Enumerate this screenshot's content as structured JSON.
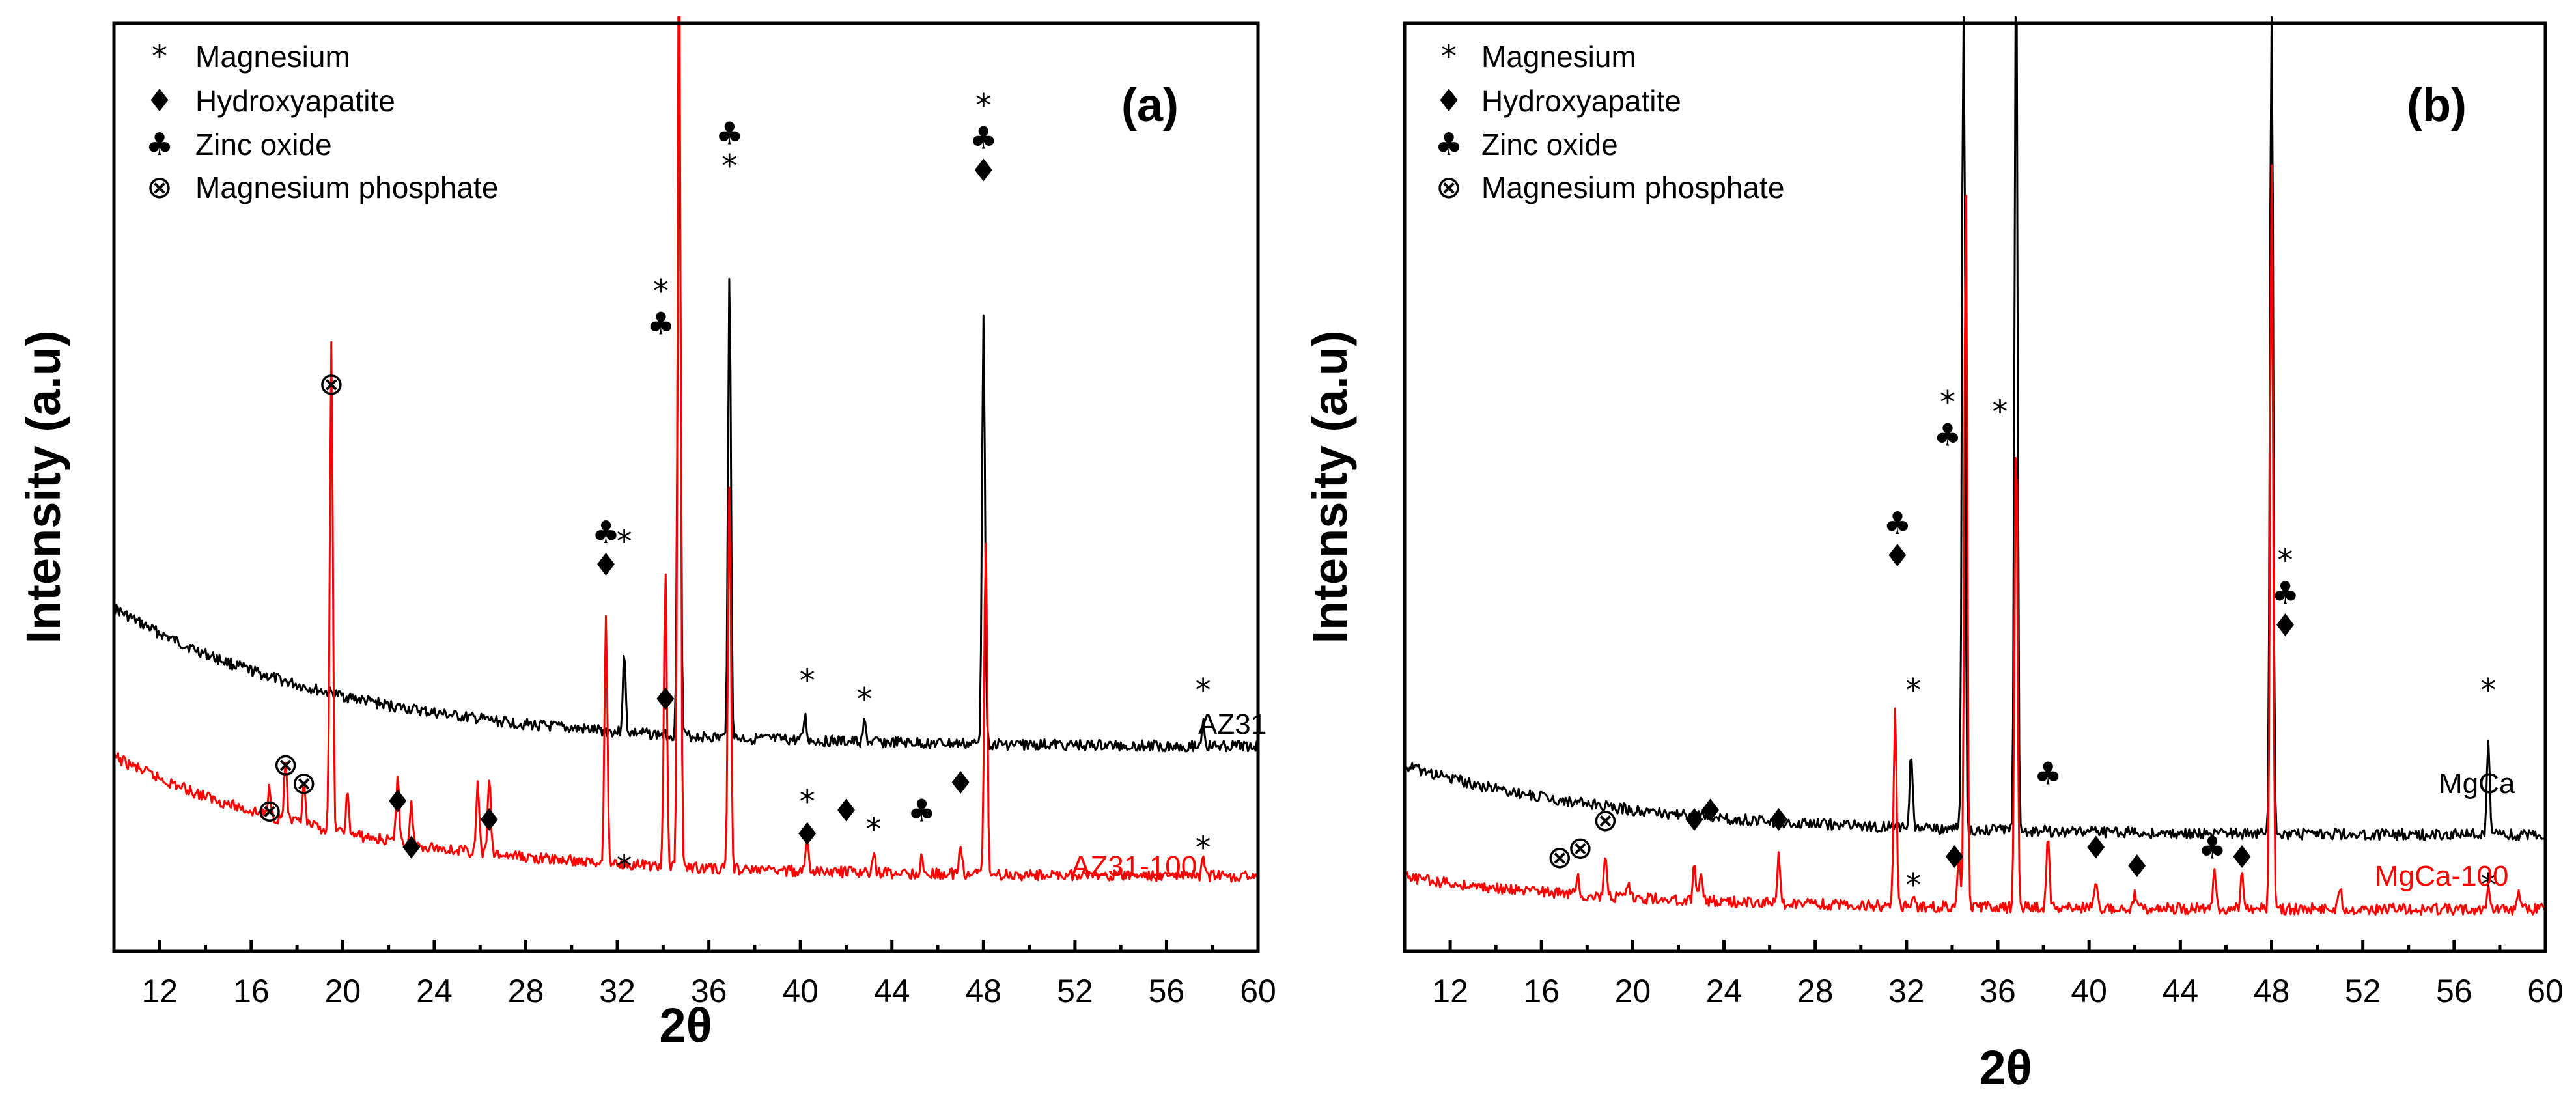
{
  "chart_data": [
    {
      "type": "line",
      "panel": "(a)",
      "xlabel": "2θ",
      "ylabel": "Intensity (a.u)",
      "xlim": [
        10,
        60
      ],
      "xticks": [
        12,
        16,
        20,
        24,
        28,
        32,
        36,
        40,
        44,
        48,
        52,
        56,
        60
      ],
      "ylim": [
        0,
        100
      ],
      "legend": [
        {
          "symbol": "*",
          "label": "Magnesium"
        },
        {
          "symbol": "♦",
          "label": "Hydroxyapatite"
        },
        {
          "symbol": "♣",
          "label": "Zinc oxide"
        },
        {
          "symbol": "⊗",
          "label": "Magnesium phosphate"
        }
      ],
      "series": [
        {
          "name": "AZ31",
          "color": "#000000",
          "baseline": {
            "start": 53,
            "minimum": 33,
            "end": 33.5
          },
          "peaks": [
            [
              32.3,
              8
            ],
            [
              34.7,
              72
            ],
            [
              36.9,
              48
            ],
            [
              40.2,
              2.5
            ],
            [
              42.8,
              2
            ],
            [
              48.0,
              45
            ],
            [
              57.6,
              2.5
            ]
          ]
        },
        {
          "name": "AZ31-100",
          "color": "#ff0000",
          "baseline": {
            "start": 44,
            "minimum": 11,
            "end": 11
          },
          "peaks": [
            [
              16.8,
              3
            ],
            [
              17.5,
              6
            ],
            [
              18.3,
              4
            ],
            [
              19.5,
              50
            ],
            [
              20.2,
              4
            ],
            [
              22.4,
              7
            ],
            [
              23.0,
              4
            ],
            [
              25.9,
              7
            ],
            [
              26.4,
              8
            ],
            [
              31.5,
              25
            ],
            [
              34.1,
              30
            ],
            [
              34.7,
              100
            ],
            [
              36.9,
              40
            ],
            [
              40.3,
              3
            ],
            [
              43.2,
              2
            ],
            [
              45.3,
              1.5
            ],
            [
              47.0,
              3
            ],
            [
              48.1,
              35
            ],
            [
              57.6,
              1.5
            ]
          ]
        }
      ],
      "annotations": [
        {
          "x": 19.5,
          "symbols": "⊗"
        },
        {
          "x": 16.8,
          "symbols": "⊗"
        },
        {
          "x": 17.5,
          "symbols": "⊗"
        },
        {
          "x": 18.3,
          "symbols": "⊗"
        },
        {
          "x": 22.4,
          "symbols": "♦"
        },
        {
          "x": 23.0,
          "symbols": "♦"
        },
        {
          "x": 26.4,
          "symbols": "♦"
        },
        {
          "x": 31.5,
          "symbols": "♣♦"
        },
        {
          "x": 32.3,
          "symbols": "*"
        },
        {
          "x": 32.3,
          "symbols": "*"
        },
        {
          "x": 33.9,
          "symbols": "*♣"
        },
        {
          "x": 34.1,
          "symbols": "♦"
        },
        {
          "x": 36.9,
          "symbols": "♣*"
        },
        {
          "x": 40.3,
          "symbols": "*"
        },
        {
          "x": 42.8,
          "symbols": "*"
        },
        {
          "x": 40.3,
          "symbols": "*♦"
        },
        {
          "x": 42.0,
          "symbols": "♦"
        },
        {
          "x": 43.2,
          "symbols": "*"
        },
        {
          "x": 45.3,
          "symbols": "♣"
        },
        {
          "x": 47.0,
          "symbols": "♦"
        },
        {
          "x": 48.0,
          "symbols": "*♣♦"
        },
        {
          "x": 57.6,
          "symbols": "*"
        },
        {
          "x": 57.6,
          "symbols": "*"
        }
      ]
    },
    {
      "type": "line",
      "panel": "(b)",
      "xlabel": "2θ",
      "ylabel": "Intensity (a.u)",
      "xlim": [
        10,
        60
      ],
      "xticks": [
        12,
        16,
        20,
        24,
        28,
        32,
        36,
        40,
        44,
        48,
        52,
        56,
        60
      ],
      "ylim": [
        0,
        100
      ],
      "legend": [
        {
          "symbol": "*",
          "label": "Magnesium"
        },
        {
          "symbol": "♦",
          "label": "Hydroxyapatite"
        },
        {
          "symbol": "♣",
          "label": "Zinc oxide"
        },
        {
          "symbol": "⊗",
          "label": "Magnesium phosphate"
        }
      ],
      "series": [
        {
          "name": "MgCa",
          "color": "#000000",
          "baseline": {
            "start": 26,
            "minimum": 21.5,
            "end": 21.5
          },
          "peaks": [
            [
              32.2,
              8
            ],
            [
              34.5,
              100
            ],
            [
              36.8,
              100
            ],
            [
              48.0,
              100
            ],
            [
              57.5,
              10
            ]
          ]
        },
        {
          "name": "MgCa-100",
          "color": "#ff0000",
          "baseline": {
            "start": 22,
            "minimum": 9,
            "end": 9
          },
          "peaks": [
            [
              17.6,
              2
            ],
            [
              18.8,
              4
            ],
            [
              19.8,
              1.5
            ],
            [
              22.7,
              3.5
            ],
            [
              23.0,
              3
            ],
            [
              26.4,
              5
            ],
            [
              31.5,
              21
            ],
            [
              32.3,
              1.5
            ],
            [
              34.3,
              5
            ],
            [
              34.6,
              78
            ],
            [
              36.8,
              52
            ],
            [
              38.2,
              8
            ],
            [
              40.3,
              2.5
            ],
            [
              42.0,
              1.5
            ],
            [
              45.5,
              4.5
            ],
            [
              46.7,
              4.5
            ],
            [
              48.0,
              80
            ],
            [
              51.0,
              2.5
            ],
            [
              57.5,
              3
            ],
            [
              58.8,
              2
            ]
          ]
        }
      ],
      "annotations": [
        {
          "x": 16.8,
          "symbols": "⊗"
        },
        {
          "x": 17.7,
          "symbols": "⊗"
        },
        {
          "x": 18.8,
          "symbols": "⊗"
        },
        {
          "x": 22.7,
          "symbols": "♦"
        },
        {
          "x": 23.4,
          "symbols": "♦"
        },
        {
          "x": 26.4,
          "symbols": "♦"
        },
        {
          "x": 31.6,
          "symbols": "♣♦"
        },
        {
          "x": 32.3,
          "symbols": "*"
        },
        {
          "x": 32.3,
          "symbols": "*"
        },
        {
          "x": 34.1,
          "symbols": "♦"
        },
        {
          "x": 33.8,
          "symbols": "*♣"
        },
        {
          "x": 36.1,
          "symbols": "*"
        },
        {
          "x": 38.2,
          "symbols": "♣"
        },
        {
          "x": 40.3,
          "symbols": "♦"
        },
        {
          "x": 42.1,
          "symbols": "♦"
        },
        {
          "x": 45.4,
          "symbols": "♣"
        },
        {
          "x": 46.7,
          "symbols": "♦"
        },
        {
          "x": 48.6,
          "symbols": "*♣♦"
        },
        {
          "x": 57.5,
          "symbols": "*"
        },
        {
          "x": 57.5,
          "symbols": "*"
        }
      ]
    }
  ]
}
